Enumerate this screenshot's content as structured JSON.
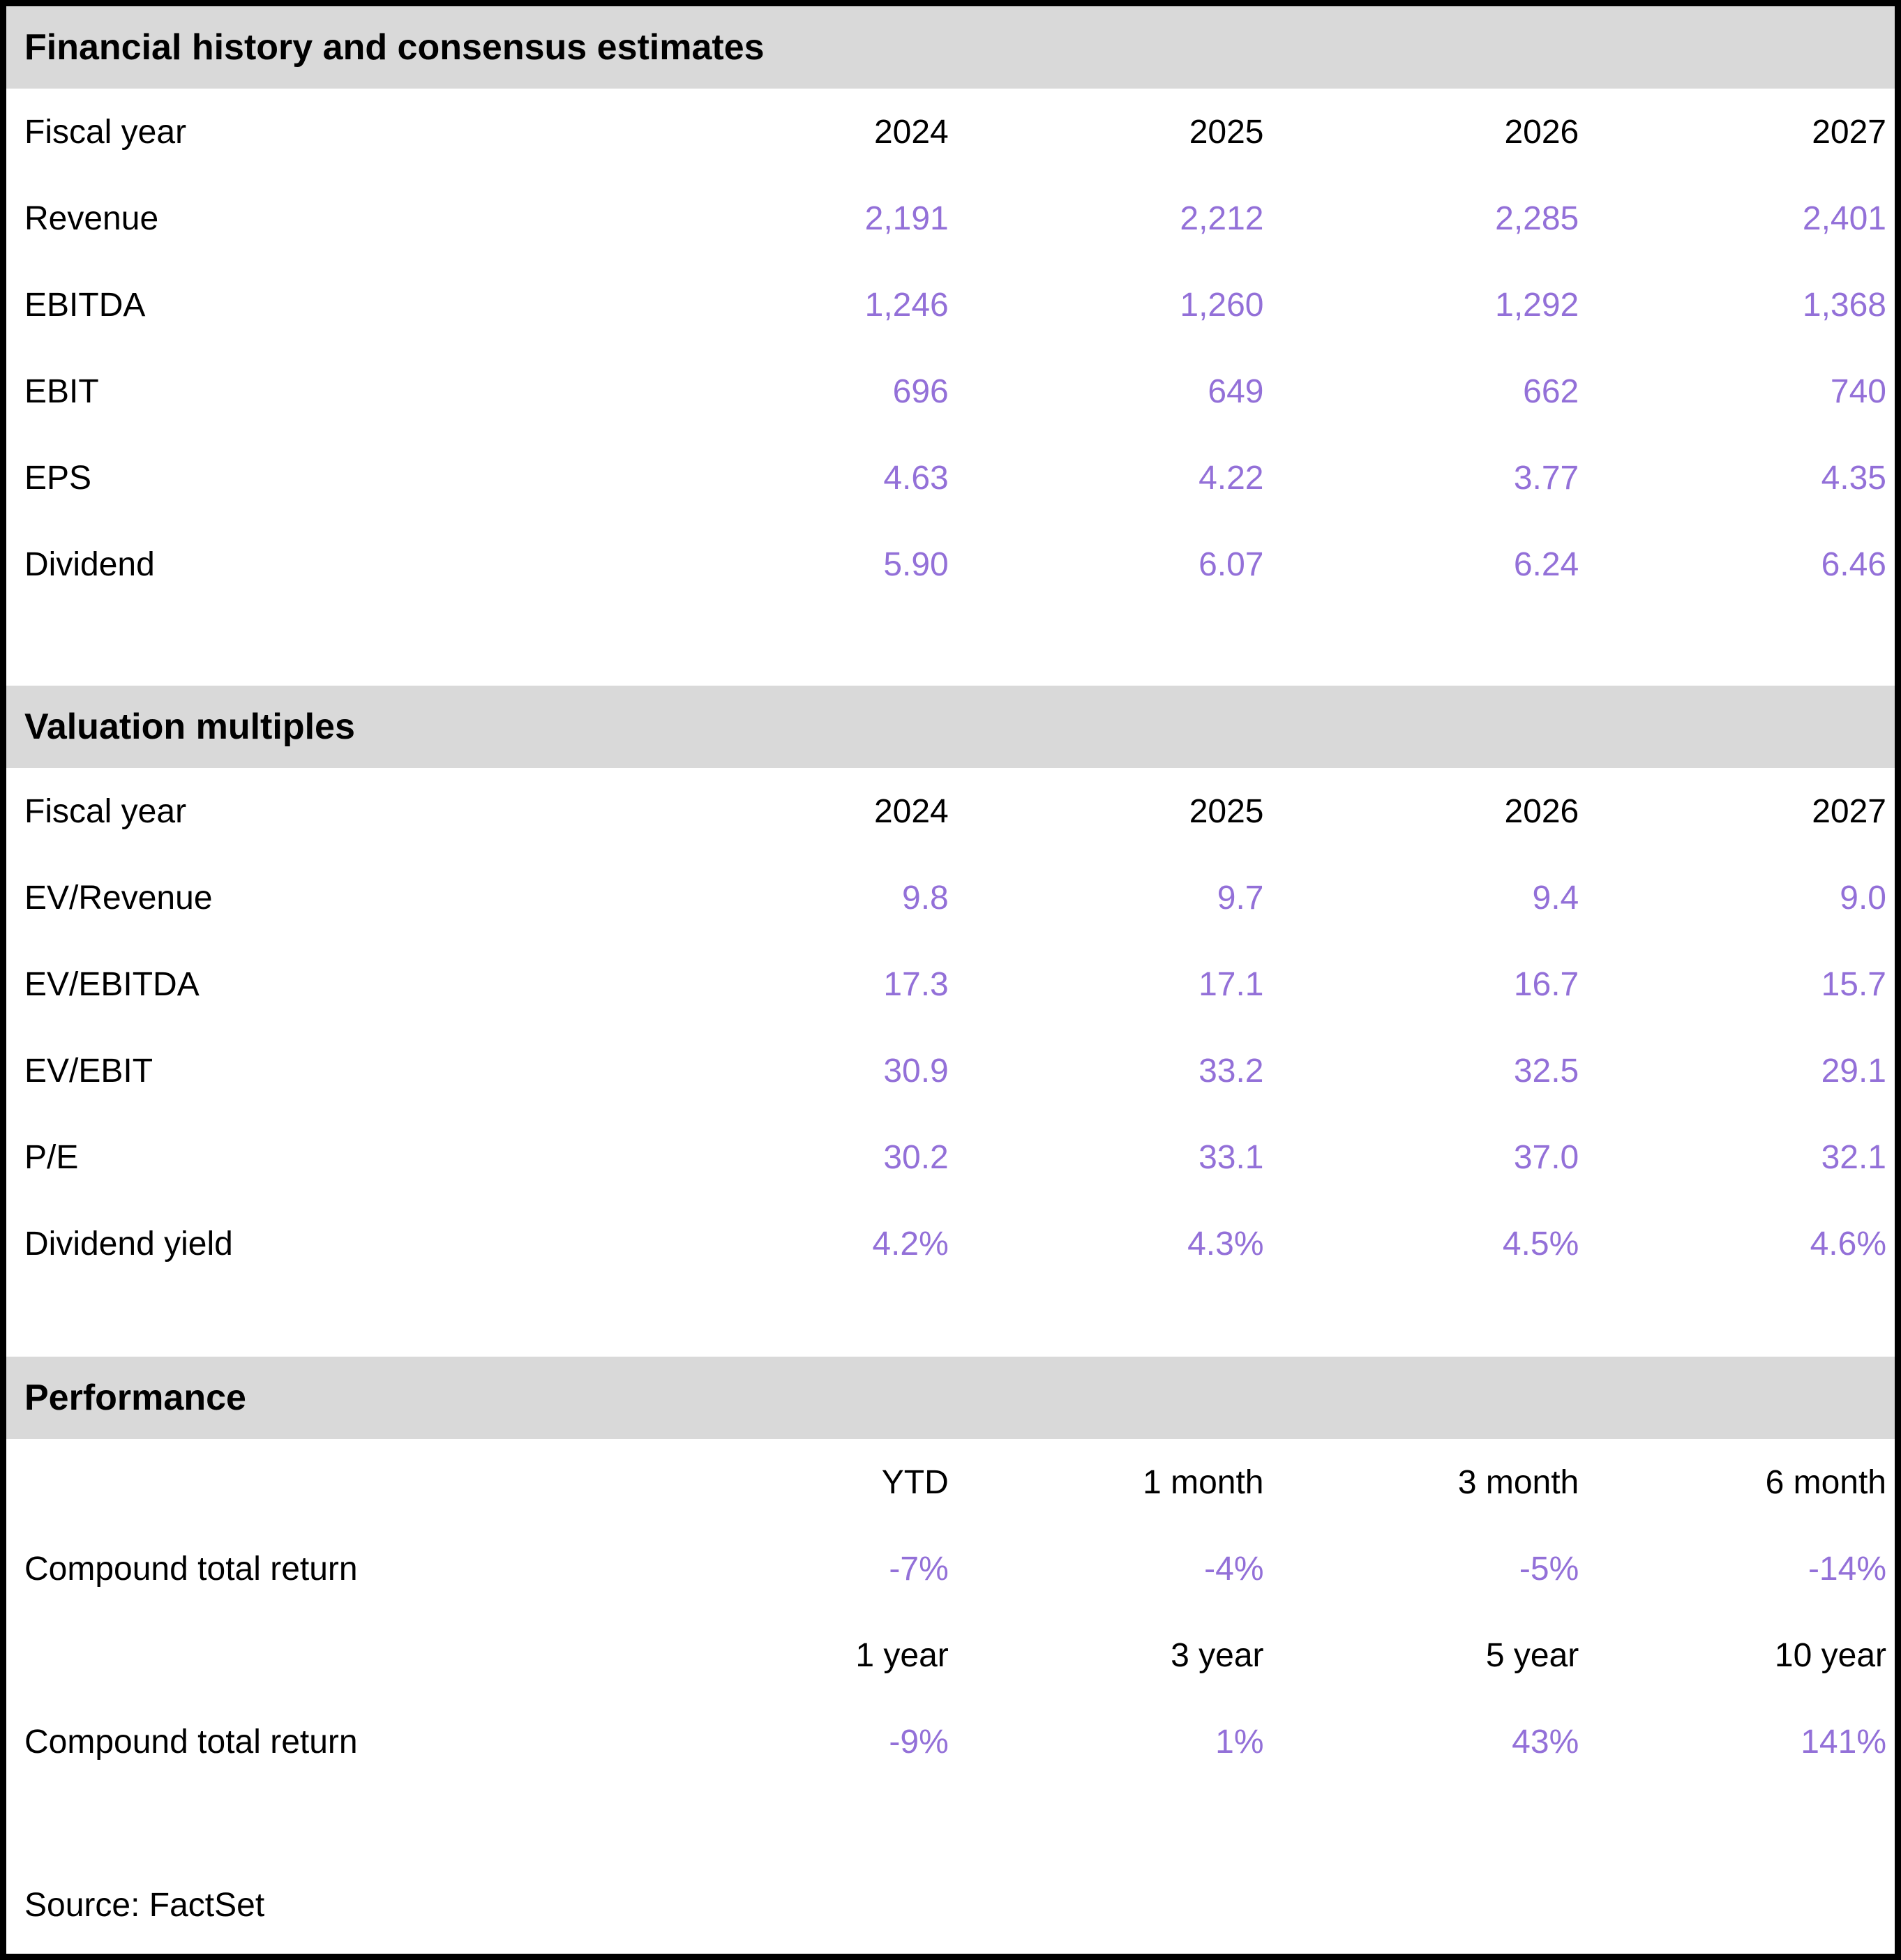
{
  "colors": {
    "value_accent": "#9370d8",
    "section_header_bg": "#d9d9d9",
    "text": "#000000",
    "border": "#000000"
  },
  "sections": [
    {
      "title": "Financial history and consensus estimates",
      "header": {
        "label": "Fiscal year",
        "cols": [
          "2024",
          "2025",
          "2026",
          "2027"
        ]
      },
      "rows": [
        {
          "label": "Revenue",
          "values": [
            "2,191",
            "2,212",
            "2,285",
            "2,401"
          ]
        },
        {
          "label": "EBITDA",
          "values": [
            "1,246",
            "1,260",
            "1,292",
            "1,368"
          ]
        },
        {
          "label": "EBIT",
          "values": [
            "696",
            "649",
            "662",
            "740"
          ]
        },
        {
          "label": "EPS",
          "values": [
            "4.63",
            "4.22",
            "3.77",
            "4.35"
          ]
        },
        {
          "label": "Dividend",
          "values": [
            "5.90",
            "6.07",
            "6.24",
            "6.46"
          ]
        }
      ]
    },
    {
      "title": "Valuation multiples",
      "header": {
        "label": "Fiscal year",
        "cols": [
          "2024",
          "2025",
          "2026",
          "2027"
        ]
      },
      "rows": [
        {
          "label": "EV/Revenue",
          "values": [
            "9.8",
            "9.7",
            "9.4",
            "9.0"
          ]
        },
        {
          "label": "EV/EBITDA",
          "values": [
            "17.3",
            "17.1",
            "16.7",
            "15.7"
          ]
        },
        {
          "label": "EV/EBIT",
          "values": [
            "30.9",
            "33.2",
            "32.5",
            "29.1"
          ]
        },
        {
          "label": "P/E",
          "values": [
            "30.2",
            "33.1",
            "37.0",
            "32.1"
          ]
        },
        {
          "label": "Dividend yield",
          "values": [
            "4.2%",
            "4.3%",
            "4.5%",
            "4.6%"
          ]
        }
      ]
    }
  ],
  "performance": {
    "title": "Performance",
    "groups": [
      {
        "cols": [
          "YTD",
          "1 month",
          "3 month",
          "6 month"
        ],
        "label": "Compound total return",
        "values": [
          "-7%",
          "-4%",
          "-5%",
          "-14%"
        ]
      },
      {
        "cols": [
          "1 year",
          "3 year",
          "5 year",
          "10 year"
        ],
        "label": "Compound total return",
        "values": [
          "-9%",
          "1%",
          "43%",
          "141%"
        ]
      }
    ]
  },
  "source": {
    "text": "Source: FactSet"
  },
  "chart_data": [
    {
      "type": "table",
      "title": "Financial history and consensus estimates",
      "columns": [
        "Fiscal year",
        "2024",
        "2025",
        "2026",
        "2027"
      ],
      "rows": [
        [
          "Revenue",
          "2,191",
          "2,212",
          "2,285",
          "2,401"
        ],
        [
          "EBITDA",
          "1,246",
          "1,260",
          "1,292",
          "1,368"
        ],
        [
          "EBIT",
          "696",
          "649",
          "662",
          "740"
        ],
        [
          "EPS",
          "4.63",
          "4.22",
          "3.77",
          "4.35"
        ],
        [
          "Dividend",
          "5.90",
          "6.07",
          "6.24",
          "6.46"
        ]
      ]
    },
    {
      "type": "table",
      "title": "Valuation multiples",
      "columns": [
        "Fiscal year",
        "2024",
        "2025",
        "2026",
        "2027"
      ],
      "rows": [
        [
          "EV/Revenue",
          "9.8",
          "9.7",
          "9.4",
          "9.0"
        ],
        [
          "EV/EBITDA",
          "17.3",
          "17.1",
          "16.7",
          "15.7"
        ],
        [
          "EV/EBIT",
          "30.9",
          "33.2",
          "32.5",
          "29.1"
        ],
        [
          "P/E",
          "30.2",
          "33.1",
          "37.0",
          "32.1"
        ],
        [
          "Dividend yield",
          "4.2%",
          "4.3%",
          "4.5%",
          "4.6%"
        ]
      ]
    },
    {
      "type": "table",
      "title": "Performance",
      "columns": [
        "",
        "YTD",
        "1 month",
        "3 month",
        "6 month"
      ],
      "rows": [
        [
          "Compound total return",
          "-7%",
          "-4%",
          "-5%",
          "-14%"
        ]
      ],
      "columns_2": [
        "",
        "1 year",
        "3 year",
        "5 year",
        "10 year"
      ],
      "rows_2": [
        [
          "Compound total return",
          "-9%",
          "1%",
          "43%",
          "141%"
        ]
      ]
    }
  ]
}
